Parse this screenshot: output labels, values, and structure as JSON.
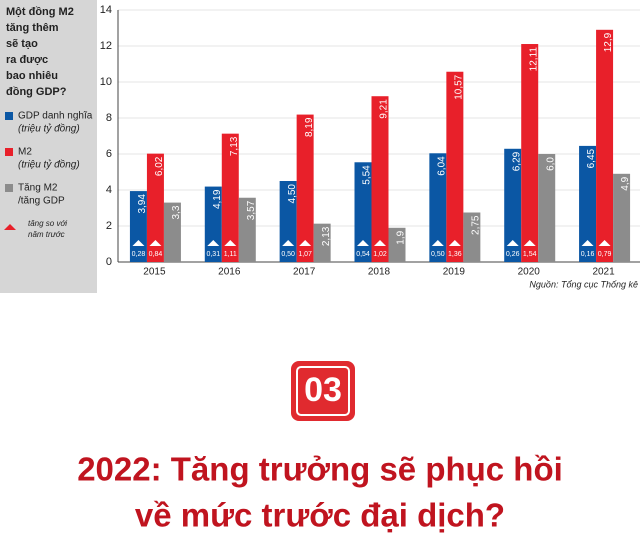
{
  "chart_data": {
    "type": "bar",
    "title": [
      "Một đồng M2",
      "tăng thêm",
      "sẽ tạo",
      "ra được",
      "bao nhiêu",
      "đồng GDP?"
    ],
    "categories": [
      "2015",
      "2016",
      "2017",
      "2018",
      "2019",
      "2020",
      "2021"
    ],
    "series": [
      {
        "name": "GDP danh nghĩa",
        "name_note": "(triệu tỷ đồng)",
        "color": "#0b57a4",
        "values": [
          3.94,
          4.19,
          4.5,
          5.54,
          6.04,
          6.29,
          6.45
        ],
        "value_labels": [
          "3,94",
          "4,19",
          "4,50",
          "5,54",
          "6,04",
          "6,29",
          "6,45"
        ],
        "growth": [
          0.28,
          0.31,
          0.5,
          0.54,
          0.5,
          0.26,
          0.16
        ],
        "growth_labels": [
          "0,28",
          "0,31",
          "0,50",
          "0,54",
          "0,50",
          "0,26",
          "0,16"
        ]
      },
      {
        "name": "M2",
        "name_note": "(triệu tỷ đồng)",
        "color": "#e8202a",
        "values": [
          6.02,
          7.13,
          8.19,
          9.21,
          10.57,
          12.11,
          12.9
        ],
        "value_labels": [
          "6,02",
          "7,13",
          "8,19",
          "9,21",
          "10,57",
          "12,11",
          "12,9"
        ],
        "growth": [
          0.84,
          1.11,
          1.07,
          1.02,
          1.36,
          1.54,
          0.79
        ],
        "growth_labels": [
          "0,84",
          "1,11",
          "1,07",
          "1,02",
          "1,36",
          "1,54",
          "0,79"
        ]
      },
      {
        "name": "Tăng M2",
        "name_note": "/tăng GDP",
        "color": "#8c8c8c",
        "values": [
          3.3,
          3.57,
          2.13,
          1.9,
          2.75,
          6.0,
          4.9
        ],
        "value_labels": [
          "3,3",
          "3,57",
          "2,13",
          "1,9",
          "2,75",
          "6,0",
          "4,9"
        ]
      }
    ],
    "growth_legend": [
      "tăng so với",
      "năm trước"
    ],
    "ylim": [
      0,
      14
    ],
    "yticks": [
      0,
      2,
      4,
      6,
      8,
      10,
      12,
      14
    ],
    "grid": true,
    "source": "Nguồn: Tổng cục Thống kê"
  },
  "section": {
    "number": "03",
    "headline": [
      "2022: Tăng trưởng sẽ phục hồi",
      "về mức trước đại dịch?"
    ]
  }
}
